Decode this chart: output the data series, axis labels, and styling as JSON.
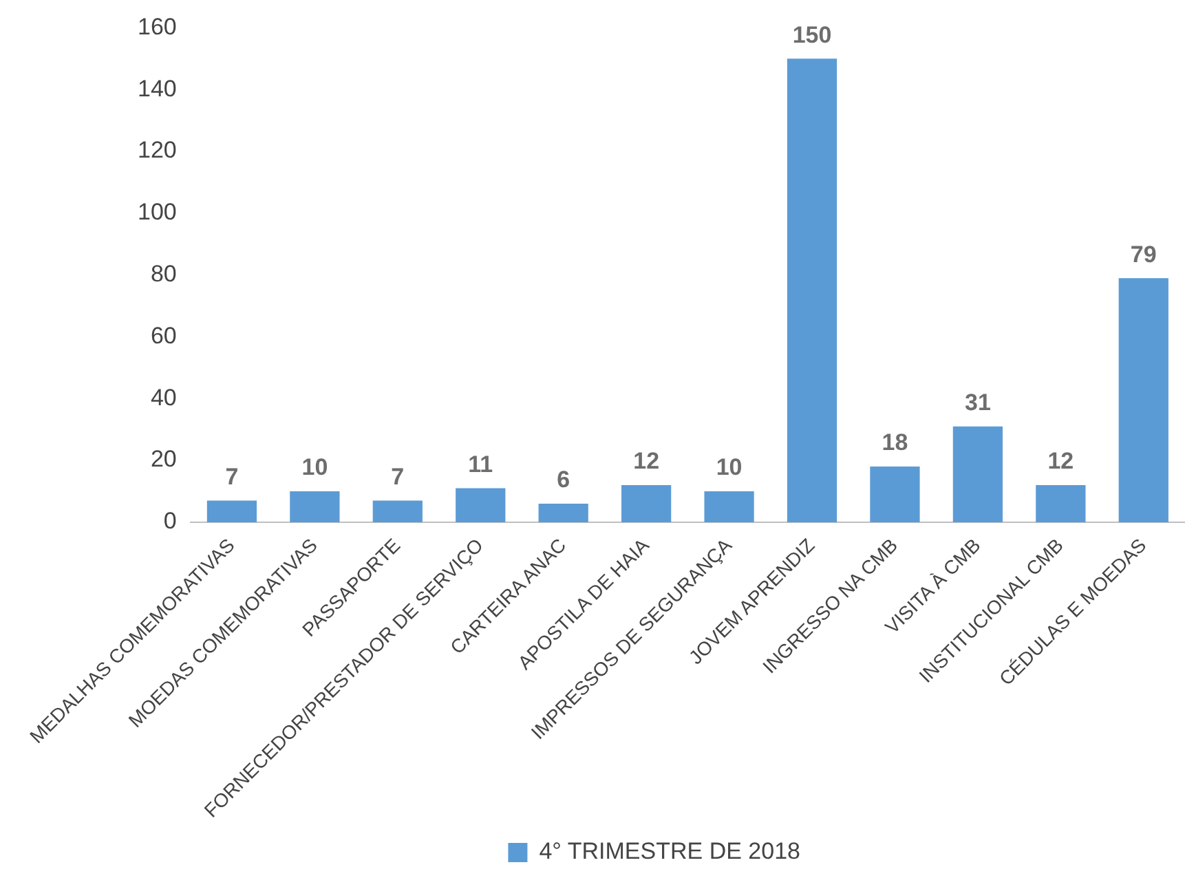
{
  "chart_data": {
    "type": "bar",
    "categories": [
      "MEDALHAS COMEMORATIVAS",
      "MOEDAS COMEMORATIVAS",
      "PASSAPORTE",
      "FORNECEDOR/PRESTADOR DE SERVIÇO",
      "CARTEIRA ANAC",
      "APOSTILA DE HAIA",
      "IMPRESSOS DE SEGURANÇA",
      "JOVEM APRENDIZ",
      "INGRESSO NA CMB",
      "VISITA À CMB",
      "INSTITUCIONAL CMB",
      "CÉDULAS E MOEDAS"
    ],
    "series": [
      {
        "name": "4° TRIMESTRE DE 2018",
        "color": "#5b9bd5",
        "values": [
          7,
          10,
          7,
          11,
          6,
          12,
          10,
          150,
          18,
          31,
          12,
          79
        ]
      }
    ],
    "ylim": [
      0,
      160
    ],
    "yticks": [
      0,
      20,
      40,
      60,
      80,
      100,
      120,
      140,
      160
    ],
    "grid": false,
    "legend": "bottom",
    "data_labels": true
  }
}
